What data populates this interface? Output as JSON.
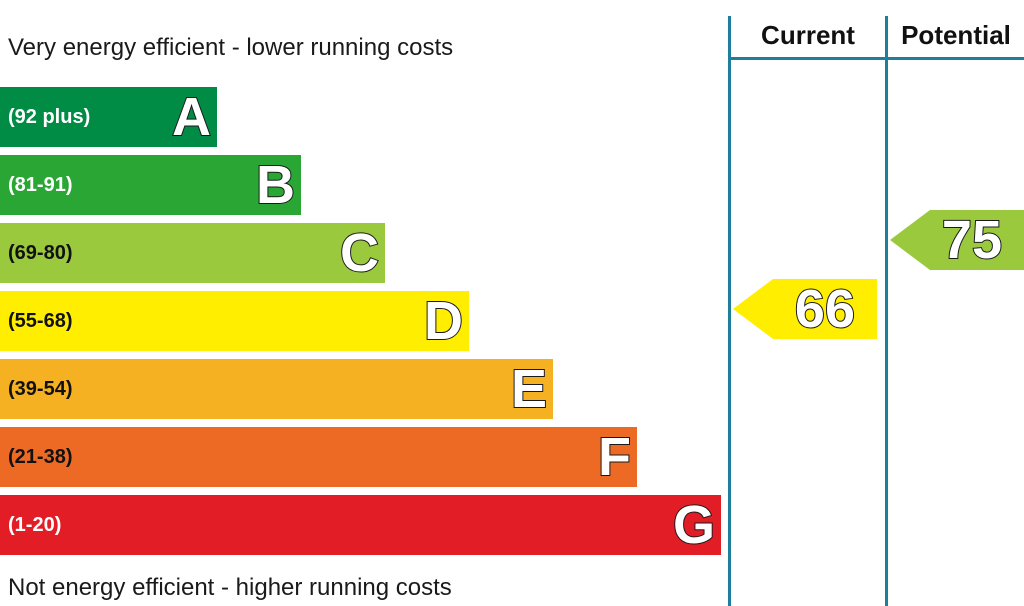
{
  "chart_data": {
    "type": "bar",
    "top_caption": "Very energy efficient - lower running costs",
    "bottom_caption": "Not energy efficient - higher running costs",
    "columns": {
      "current": "Current",
      "potential": "Potential"
    },
    "bands": [
      {
        "letter": "A",
        "range": "(92 plus)",
        "color": "#008c44"
      },
      {
        "letter": "B",
        "range": "(81-91)",
        "color": "#2aa634"
      },
      {
        "letter": "C",
        "range": "(69-80)",
        "color": "#9ac93e"
      },
      {
        "letter": "D",
        "range": "(55-68)",
        "color": "#ffee00"
      },
      {
        "letter": "E",
        "range": "(39-54)",
        "color": "#f5b122"
      },
      {
        "letter": "F",
        "range": "(21-38)",
        "color": "#ed6a25"
      },
      {
        "letter": "G",
        "range": "(1-20)",
        "color": "#e31d26"
      }
    ],
    "current": {
      "value": "66",
      "band": "D",
      "color": "#ffee00"
    },
    "potential": {
      "value": "75",
      "band": "C",
      "color": "#9ac93e"
    }
  }
}
